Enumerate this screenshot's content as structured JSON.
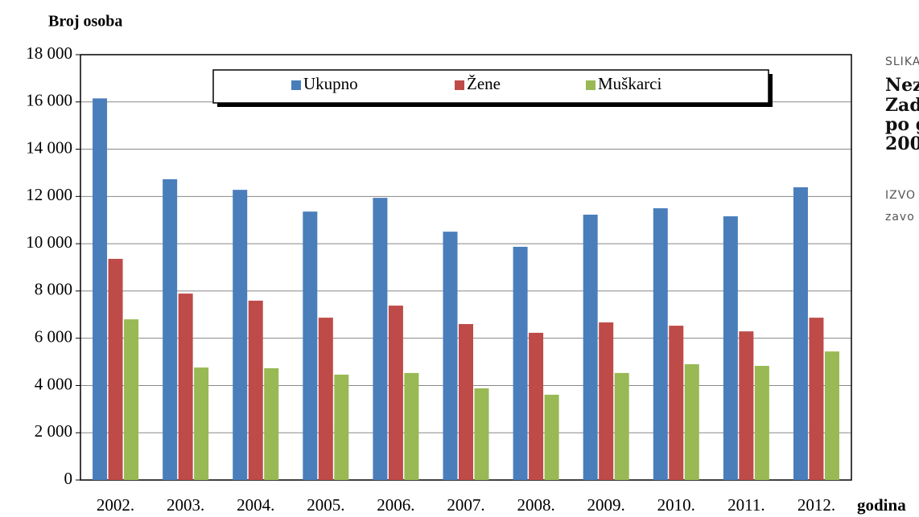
{
  "chart_data": {
    "type": "bar",
    "ylabel": "Broj osoba",
    "xlabel": "godina",
    "categories": [
      "2002.",
      "2003.",
      "2004.",
      "2005.",
      "2006.",
      "2007.",
      "2008.",
      "2009.",
      "2010.",
      "2011.",
      "2012."
    ],
    "series": [
      {
        "name": "Ukupno",
        "color": "#4a7ebb",
        "values": [
          16150,
          12730,
          12280,
          11360,
          11940,
          10510,
          9870,
          11230,
          11500,
          11160,
          12390
        ]
      },
      {
        "name": "Žene",
        "color": "#be4b48",
        "values": [
          9360,
          7890,
          7590,
          6870,
          7380,
          6600,
          6230,
          6670,
          6530,
          6290,
          6870
        ]
      },
      {
        "name": "Muškarci",
        "color": "#98b954",
        "values": [
          6800,
          4760,
          4730,
          4460,
          4530,
          3880,
          3610,
          4530,
          4900,
          4830,
          5440
        ]
      }
    ],
    "ylim": [
      0,
      18000
    ],
    "yticks": [
      0,
      {
        "value": 2000,
        "label": "2 000"
      },
      {
        "value": 4000,
        "label": "4 000"
      },
      {
        "value": 6000,
        "label": "6 000"
      },
      {
        "value": 8000,
        "label": "8 000"
      },
      {
        "value": 10000,
        "label": "10 000"
      },
      {
        "value": 12000,
        "label": "12 000"
      },
      {
        "value": 14000,
        "label": "14 000"
      },
      {
        "value": 16000,
        "label": "16 000"
      },
      {
        "value": 18000,
        "label": "18 000"
      }
    ],
    "grid": true,
    "legend": "top"
  },
  "side": {
    "label": "SLIKA",
    "title": [
      "Nez",
      "Zad",
      "po g",
      "200"
    ],
    "source": [
      "IZVO",
      "zavo"
    ]
  }
}
